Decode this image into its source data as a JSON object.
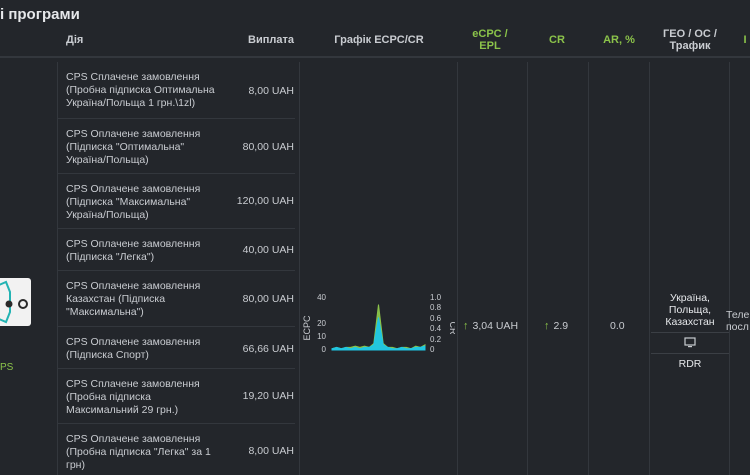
{
  "page": {
    "title": "і програми"
  },
  "header": {
    "action": "Дія",
    "payout": "Виплата",
    "chart": "Графік ECPC/CR",
    "ecpc_line1": "eCPC /",
    "ecpc_line2": "EPL",
    "cr": "CR",
    "ar": "AR, %",
    "geo_line1": "ГЕО / ОС /",
    "geo_line2": "Трафик",
    "extra": "І"
  },
  "logo": {
    "caption": "PS"
  },
  "actions": [
    {
      "desc": "CPS Сплачене замовлення (Пробна підписка Оптимальна Україна/Польща 1 грн.\\1zl)",
      "payout": "8,00 UAH"
    },
    {
      "desc": "CPS Оплачене замовлення (Підписка \"Оптимальна\" Україна/Польща)",
      "payout": "80,00 UAH"
    },
    {
      "desc": "CPS Оплачене замовлення (Підписка \"Максимальна\" Україна/Польща)",
      "payout": "120,00 UAH"
    },
    {
      "desc": "CPS Оплачене замовлення (Підписка \"Легка\")",
      "payout": "40,00 UAH"
    },
    {
      "desc": "CPS Оплачене замовлення Казахстан (Підписка \"Максимальна\")",
      "payout": "80,00 UAH"
    },
    {
      "desc": "CPS Оплачене замовлення (Підписка Спорт)",
      "payout": "66,66 UAH"
    },
    {
      "desc": "CPS Сплачене замовлення (Пробна підписка Максимальний 29 грн.)",
      "payout": "19,20 UAH"
    },
    {
      "desc": "CPS Оплачене замовлення (Пробна підписка \"Легка\" за 1 грн)",
      "payout": "8,00 UAH"
    }
  ],
  "chart_data": {
    "type": "area",
    "x": [
      0,
      1,
      2,
      3,
      4,
      5,
      6,
      7,
      8,
      9,
      10,
      11,
      12,
      13,
      14,
      15,
      16,
      17,
      18,
      19,
      20
    ],
    "series": [
      {
        "values": [
          1,
          2,
          1,
          2,
          2,
          3,
          2,
          3,
          2,
          5,
          35,
          5,
          2,
          2,
          1,
          2,
          2,
          1,
          3,
          2,
          4
        ],
        "color": "#8bc34a"
      },
      {
        "values": [
          1,
          2,
          1,
          2,
          1,
          2,
          1,
          2,
          2,
          4,
          25,
          4,
          2,
          1,
          1,
          2,
          1,
          1,
          2,
          2,
          3
        ],
        "color": "#1ec6e6"
      }
    ],
    "ylabel": "ECPC",
    "y2label": "CR",
    "ylim": [
      0,
      40
    ],
    "y2lim": [
      0,
      1.0
    ],
    "yticks": [
      "40",
      "20",
      "10",
      "0"
    ],
    "y2ticks": [
      "1.0",
      "0.8",
      "0.6",
      "0.4",
      "0.2",
      "0"
    ]
  },
  "metrics": {
    "ecpc": "3,04 UAH",
    "cr": "2.9",
    "ar": "0.0"
  },
  "geo": {
    "countries": "Україна, Польща, Казахстан",
    "os_icon": "desktop-icon",
    "traffic_type": "RDR"
  },
  "traffic": {
    "line1": "Теле",
    "line2": "посл"
  }
}
